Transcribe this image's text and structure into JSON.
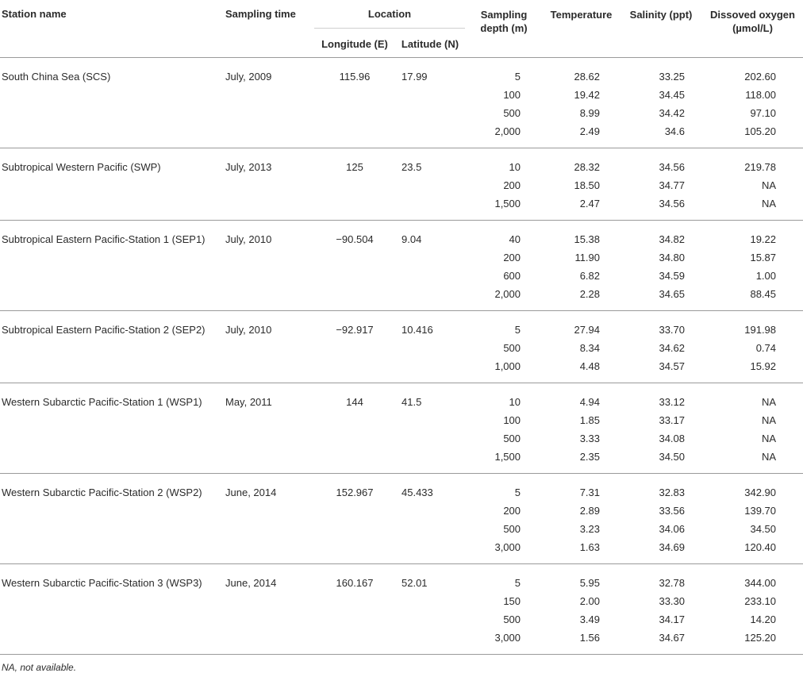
{
  "headers": {
    "station_name": "Station name",
    "sampling_time": "Sampling time",
    "location": "Location",
    "longitude": "Longitude (E)",
    "latitude": "Latitude (N)",
    "depth_line1": "Sampling",
    "depth_line2": "depth (m)",
    "temperature": "Temperature",
    "salinity": "Salinity (ppt)",
    "oxygen_line1": "Dissoved oxygen",
    "oxygen_line2": "(µmol/L)"
  },
  "stations": [
    {
      "name": "South China Sea (SCS)",
      "time": "July, 2009",
      "lon": "115.96",
      "lat": "17.99",
      "samples": [
        {
          "depth": "5",
          "temp": "28.62",
          "sal": "33.25",
          "do": "202.60"
        },
        {
          "depth": "100",
          "temp": "19.42",
          "sal": "34.45",
          "do": "118.00"
        },
        {
          "depth": "500",
          "temp": "8.99",
          "sal": "34.42",
          "do": "97.10"
        },
        {
          "depth": "2,000",
          "temp": "2.49",
          "sal": "34.6",
          "do": "105.20"
        }
      ]
    },
    {
      "name": "Subtropical Western Pacific (SWP)",
      "time": "July, 2013",
      "lon": "125",
      "lat": "23.5",
      "samples": [
        {
          "depth": "10",
          "temp": "28.32",
          "sal": "34.56",
          "do": "219.78"
        },
        {
          "depth": "200",
          "temp": "18.50",
          "sal": "34.77",
          "do": "NA"
        },
        {
          "depth": "1,500",
          "temp": "2.47",
          "sal": "34.56",
          "do": "NA"
        }
      ]
    },
    {
      "name": "Subtropical Eastern Pacific-Station 1 (SEP1)",
      "time": "July, 2010",
      "lon": "−90.504",
      "lat": "9.04",
      "samples": [
        {
          "depth": "40",
          "temp": "15.38",
          "sal": "34.82",
          "do": "19.22"
        },
        {
          "depth": "200",
          "temp": "11.90",
          "sal": "34.80",
          "do": "15.87"
        },
        {
          "depth": "600",
          "temp": "6.82",
          "sal": "34.59",
          "do": "1.00"
        },
        {
          "depth": "2,000",
          "temp": "2.28",
          "sal": "34.65",
          "do": "88.45"
        }
      ]
    },
    {
      "name": "Subtropical Eastern Pacific-Station 2 (SEP2)",
      "time": "July, 2010",
      "lon": "−92.917",
      "lat": "10.416",
      "samples": [
        {
          "depth": "5",
          "temp": "27.94",
          "sal": "33.70",
          "do": "191.98"
        },
        {
          "depth": "500",
          "temp": "8.34",
          "sal": "34.62",
          "do": "0.74"
        },
        {
          "depth": "1,000",
          "temp": "4.48",
          "sal": "34.57",
          "do": "15.92"
        }
      ]
    },
    {
      "name": "Western Subarctic Pacific-Station 1 (WSP1)",
      "time": "May, 2011",
      "lon": "144",
      "lat": "41.5",
      "samples": [
        {
          "depth": "10",
          "temp": "4.94",
          "sal": "33.12",
          "do": "NA"
        },
        {
          "depth": "100",
          "temp": "1.85",
          "sal": "33.17",
          "do": "NA"
        },
        {
          "depth": "500",
          "temp": "3.33",
          "sal": "34.08",
          "do": "NA"
        },
        {
          "depth": "1,500",
          "temp": "2.35",
          "sal": "34.50",
          "do": "NA"
        }
      ]
    },
    {
      "name": "Western Subarctic Pacific-Station 2 (WSP2)",
      "time": "June, 2014",
      "lon": "152.967",
      "lat": "45.433",
      "samples": [
        {
          "depth": "5",
          "temp": "7.31",
          "sal": "32.83",
          "do": "342.90"
        },
        {
          "depth": "200",
          "temp": "2.89",
          "sal": "33.56",
          "do": "139.70"
        },
        {
          "depth": "500",
          "temp": "3.23",
          "sal": "34.06",
          "do": "34.50"
        },
        {
          "depth": "3,000",
          "temp": "1.63",
          "sal": "34.69",
          "do": "120.40"
        }
      ]
    },
    {
      "name": "Western Subarctic Pacific-Station 3 (WSP3)",
      "time": "June, 2014",
      "lon": "160.167",
      "lat": "52.01",
      "samples": [
        {
          "depth": "5",
          "temp": "5.95",
          "sal": "32.78",
          "do": "344.00"
        },
        {
          "depth": "150",
          "temp": "2.00",
          "sal": "33.30",
          "do": "233.10"
        },
        {
          "depth": "500",
          "temp": "3.49",
          "sal": "34.17",
          "do": "14.20"
        },
        {
          "depth": "3,000",
          "temp": "1.56",
          "sal": "34.67",
          "do": "125.20"
        }
      ]
    }
  ],
  "footnote": "NA, not available."
}
